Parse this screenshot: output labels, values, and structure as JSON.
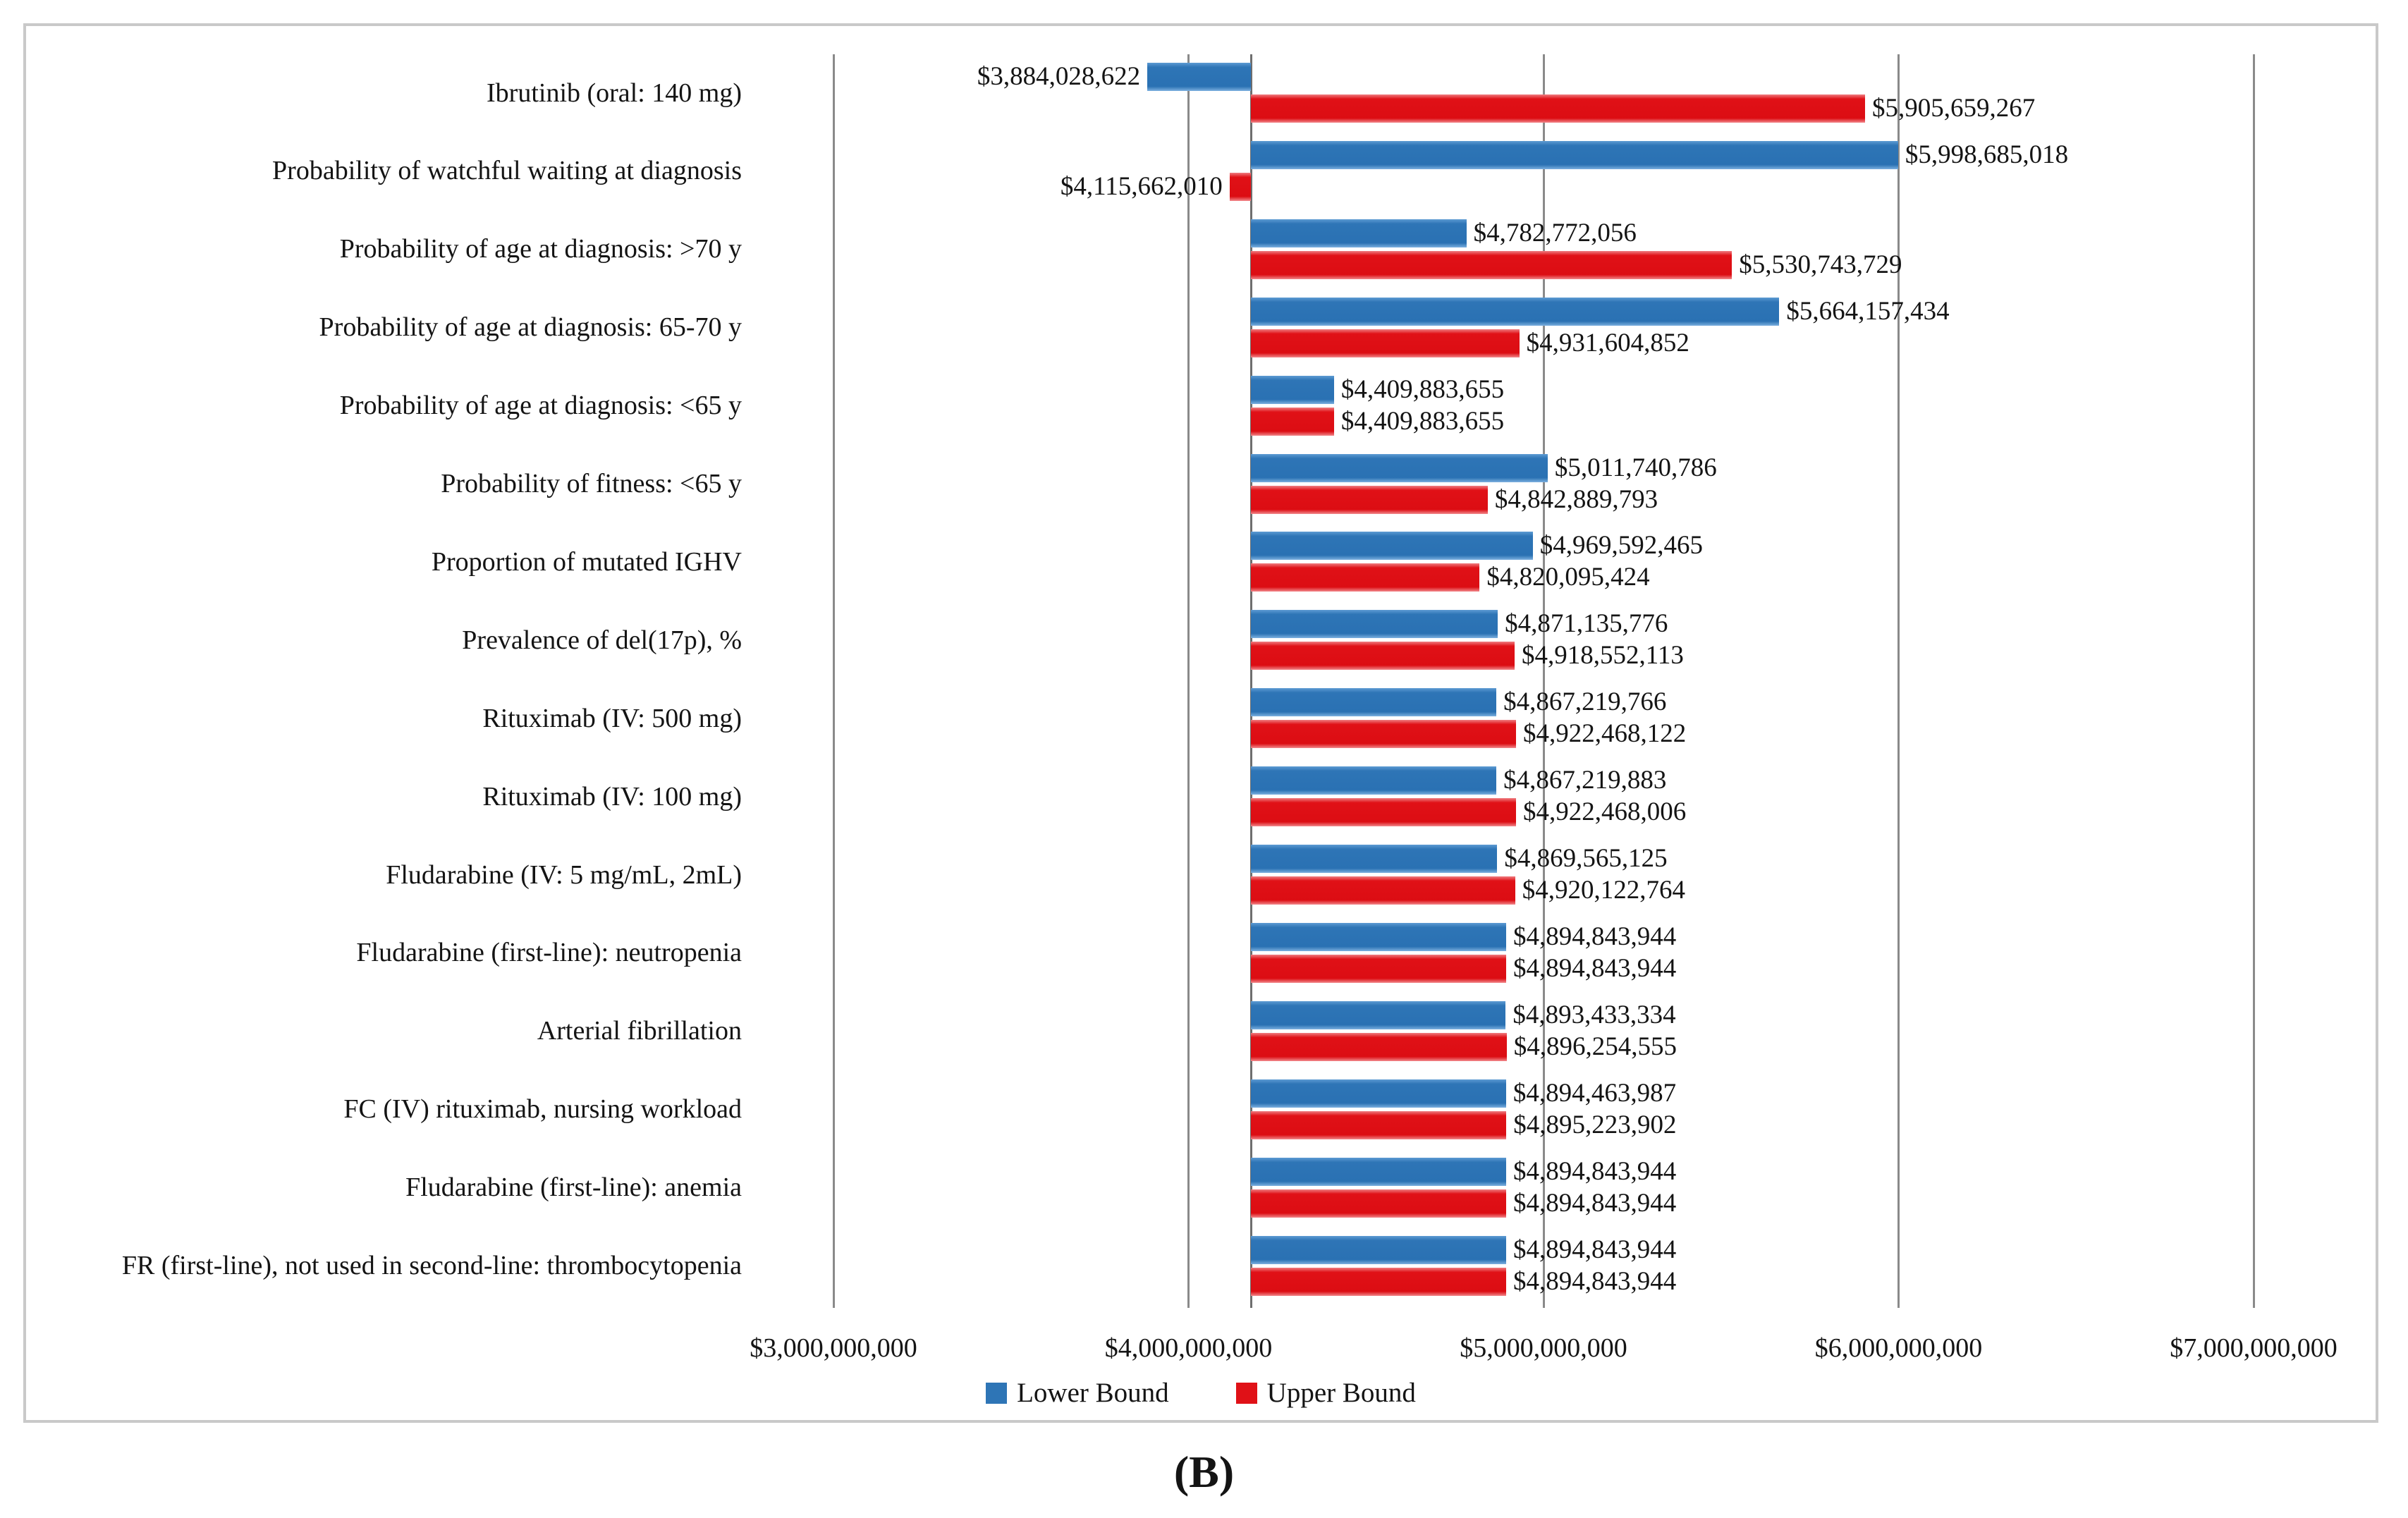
{
  "figure": {
    "caption": "(B)"
  },
  "chart_data": {
    "type": "bar",
    "subtype": "tornado",
    "orientation": "horizontal",
    "title": "",
    "xlabel": "",
    "ylabel": "",
    "grid": true,
    "legend_position": "bottom",
    "value_prefix": "$",
    "axis": {
      "min": 3000000000,
      "max": 7000000000,
      "tick_interval": 1000000000,
      "tick_labels": [
        "$3,000,000,000",
        "$4,000,000,000",
        "$5,000,000,000",
        "$6,000,000,000",
        "$7,000,000,000"
      ],
      "baseline": 4176000000
    },
    "legend": [
      {
        "label": "Lower Bound",
        "color": "#2E75B6"
      },
      {
        "label": "Upper Bound",
        "color": "#E01117"
      }
    ],
    "categories": [
      "Ibrutinib (oral: 140 mg)",
      "Probability of watchful waiting at diagnosis",
      "Probability of age at diagnosis: >70 y",
      "Probability of age at diagnosis: 65-70 y",
      "Probability of age at diagnosis: <65 y",
      "Probability of fitness: <65 y",
      "Proportion of mutated IGHV",
      "Prevalence of del(17p), %",
      "Rituximab (IV: 500 mg)",
      "Rituximab (IV: 100 mg)",
      "Fludarabine (IV: 5 mg/mL, 2mL)",
      "Fludarabine (first-line): neutropenia",
      "Arterial fibrillation",
      "FC (IV) rituximab, nursing workload",
      "Fludarabine (first-line): anemia",
      "FR (first-line), not used in second-line: thrombocytopenia"
    ],
    "series": [
      {
        "name": "Lower Bound",
        "color": "#2E75B6",
        "values": [
          3884028622,
          5998685018,
          4782772056,
          5664157434,
          4409883655,
          5011740786,
          4969592465,
          4871135776,
          4867219766,
          4867219883,
          4869565125,
          4894843944,
          4893433334,
          4894463987,
          4894843944,
          4894843944
        ]
      },
      {
        "name": "Upper Bound",
        "color": "#E01117",
        "values": [
          5905659267,
          4115662010,
          5530743729,
          4931604852,
          4409883655,
          4842889793,
          4820095424,
          4918552113,
          4922468122,
          4922468006,
          4920122764,
          4894843944,
          4896254555,
          4895223902,
          4894843944,
          4894843944
        ]
      }
    ]
  }
}
